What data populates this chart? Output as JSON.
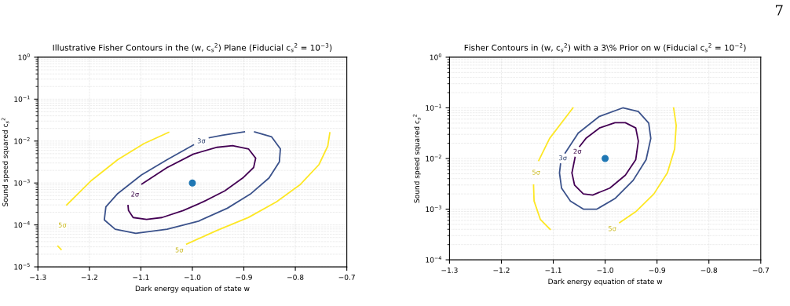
{
  "chart_data": [
    {
      "type": "line",
      "title": "Illustrative Fisher Contours in the (w, c$_{s}$$^{2}$) Plane (Fiducial c$_{s}$$^{2}$ = 10$^{−3}$)",
      "xlabel": "Dark energy equation of state w",
      "ylabel": "Sound speed squared c$_{s}$$^{2}$",
      "log": "y",
      "grid": true,
      "legend": false,
      "marker": "none",
      "line_style": "solid",
      "xlim": [
        -1.3,
        -0.7
      ],
      "xticks": [
        {
          "value": -1.3,
          "label": "−1.3"
        },
        {
          "value": -1.2,
          "label": "−1.2"
        },
        {
          "value": -1.1,
          "label": "−1.1"
        },
        {
          "value": -1.0,
          "label": "−1.0"
        },
        {
          "value": -0.9,
          "label": "−0.9"
        },
        {
          "value": -0.8,
          "label": "−0.8"
        },
        {
          "value": -0.7,
          "label": "−0.7"
        }
      ],
      "ylim": [
        1e-05,
        1
      ],
      "yticks": [
        {
          "value": 1e-05,
          "label": "10$^{−5}$"
        },
        {
          "value": 0.0001,
          "label": "10$^{−4}$"
        },
        {
          "value": 0.001,
          "label": "10$^{−3}$"
        },
        {
          "value": 0.01,
          "label": "10$^{−2}$"
        },
        {
          "value": 0.1,
          "label": "10$^{−1}$"
        },
        {
          "value": 1,
          "label": "10$^{0}$"
        }
      ],
      "series": [
        {
          "name": "2σ",
          "color": "#440154",
          "x": [
            -1.049,
            -0.998,
            -0.952,
            -0.922,
            -0.891,
            -0.877,
            -0.881,
            -0.902,
            -0.937,
            -0.978,
            -1.018,
            -1.059,
            -1.089,
            -1.115,
            -1.124,
            -1.125,
            null,
            -1.098,
            -1.049
          ],
          "values": [
            0.00234,
            0.0049,
            0.0071,
            0.0078,
            0.0065,
            0.0039,
            0.00234,
            0.00132,
            0.00065,
            0.00036,
            0.00022,
            0.00015,
            0.000135,
            0.00015,
            0.00022,
            0.00029,
            null,
            0.00095,
            0.00234
          ]
        },
        {
          "name": "3σ",
          "color": "#3b528b",
          "x": [
            -0.879,
            -0.846,
            -0.829,
            -0.831,
            -0.851,
            -0.886,
            -0.932,
            -0.988,
            -1.049,
            -1.11,
            -1.15,
            -1.171,
            -1.168,
            -1.145,
            -1.099,
            -1.049,
            -0.998,
            null,
            -0.967,
            -0.942,
            -0.899
          ],
          "values": [
            0.0166,
            0.0126,
            0.0065,
            0.0032,
            0.00132,
            0.00056,
            0.00025,
            0.000123,
            7.9e-05,
            6.3e-05,
            7.9e-05,
            0.000132,
            0.00027,
            0.00056,
            0.00155,
            0.0036,
            0.0081,
            null,
            0.012,
            0.0138,
            0.0166
          ]
        },
        {
          "name": "5σ",
          "color": "#fde725",
          "x": [
            -1.255,
            -1.261,
            null,
            -1.244,
            -1.196,
            -1.145,
            -1.094,
            -1.046
          ],
          "values": [
            2.6e-05,
            3.1e-05,
            null,
            0.0003,
            0.00115,
            0.0036,
            0.0087,
            0.0162
          ]
        },
        {
          "name": "5σ",
          "color": "#fde725",
          "x": [
            -1.011,
            -0.952,
            -0.891,
            -0.836,
            -0.79,
            -0.754,
            -0.737,
            -0.733
          ],
          "values": [
            3.5e-05,
            7.4e-05,
            0.000151,
            0.00036,
            0.00093,
            0.00275,
            0.0076,
            0.0158
          ]
        },
        {
          "type": "scatter",
          "marker": "circle",
          "color": "#1f77b4",
          "x": [
            -1.0
          ],
          "values": [
            0.001
          ]
        }
      ]
    },
    {
      "type": "line",
      "title": "Fisher Contours in (w, c$_{s}$$^{2}$) with a 3\\% Prior on w (Fiducial c$_{s}$$^{2}$ = 10$^{−2}$)",
      "xlabel": "Dark energy equation of state w",
      "ylabel": "Sound speed squared c$_{s}$$^{2}$",
      "log": "y",
      "grid": true,
      "legend": false,
      "marker": "none",
      "line_style": "solid",
      "xlim": [
        -1.3,
        -0.7
      ],
      "xticks": [
        {
          "value": -1.3,
          "label": "−1.3"
        },
        {
          "value": -1.2,
          "label": "−1.2"
        },
        {
          "value": -1.1,
          "label": "−1.1"
        },
        {
          "value": -1.0,
          "label": "−1.0"
        },
        {
          "value": -0.9,
          "label": "−0.9"
        },
        {
          "value": -0.8,
          "label": "−0.8"
        },
        {
          "value": -0.7,
          "label": "−0.7"
        }
      ],
      "ylim": [
        0.0001,
        1
      ],
      "yticks": [
        {
          "value": 0.0001,
          "label": "10$^{−4}$"
        },
        {
          "value": 0.001,
          "label": "10$^{−3}$"
        },
        {
          "value": 0.01,
          "label": "10$^{−2}$"
        },
        {
          "value": 0.1,
          "label": "10$^{−1}$"
        },
        {
          "value": 1,
          "label": "10$^{0}$"
        }
      ],
      "series": [
        {
          "name": "2σ",
          "color": "#440154",
          "x": [
            -1.064,
            -1.059,
            -1.042,
            -1.024,
            -0.991,
            -0.961,
            -0.941,
            -0.936,
            -0.941,
            -0.961,
            -0.981,
            -1.011,
            -1.037,
            -1.049,
            null,
            -1.058,
            -1.064
          ],
          "values": [
            0.0052,
            0.003,
            0.002,
            0.0019,
            0.0026,
            0.0047,
            0.0095,
            0.022,
            0.04,
            0.051,
            0.051,
            0.04,
            0.025,
            0.0174,
            null,
            0.0105,
            0.0052
          ]
        },
        {
          "name": "3σ",
          "color": "#3b528b",
          "x": [
            -1.052,
            -1.011,
            -0.966,
            -0.936,
            -0.916,
            -0.912,
            -0.921,
            -0.946,
            -0.981,
            -1.016,
            -1.042,
            -1.067,
            -1.084,
            -1.088,
            -1.086,
            null,
            -1.077,
            -1.052
          ],
          "values": [
            0.0316,
            0.068,
            0.1,
            0.085,
            0.05,
            0.025,
            0.0095,
            0.0037,
            0.00162,
            0.001,
            0.001,
            0.00145,
            0.0026,
            0.0052,
            0.0078,
            null,
            0.0129,
            0.0316
          ]
        },
        {
          "name": "5σ",
          "color": "#fde725",
          "x": [
            -1.106,
            -1.125,
            -1.137,
            -1.138,
            null,
            -1.128,
            -1.107,
            -1.082,
            -1.062
          ],
          "values": [
            0.0004,
            0.00063,
            0.00145,
            0.003,
            null,
            0.0091,
            0.025,
            0.054,
            0.1
          ]
        },
        {
          "name": "5σ",
          "color": "#fde725",
          "x": [
            -0.972,
            -0.941,
            -0.906,
            -0.88,
            -0.866,
            -0.863,
            -0.868
          ],
          "values": [
            0.00054,
            0.00089,
            0.002,
            0.0052,
            0.0155,
            0.045,
            0.1
          ]
        },
        {
          "type": "scatter",
          "marker": "circle",
          "color": "#1f77b4",
          "x": [
            -1.0
          ],
          "values": [
            0.01
          ]
        }
      ],
      "annotations": [
        "7"
      ]
    }
  ]
}
